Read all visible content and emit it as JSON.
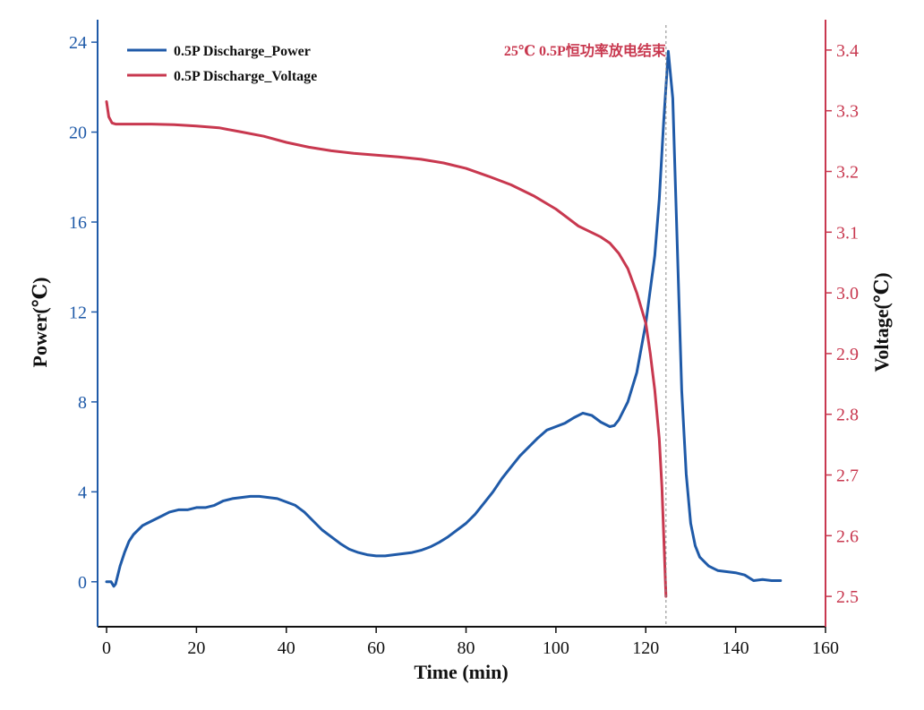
{
  "chart_data": {
    "type": "line",
    "title": "",
    "xlabel": "Time (min)",
    "ylabel_left": "Power(℃)",
    "ylabel_right": "Voltage(℃)",
    "xlim": [
      -2,
      160
    ],
    "ylim_left": [
      -2,
      25
    ],
    "ylim_right": [
      2.45,
      3.45
    ],
    "x_ticks": [
      0,
      20,
      40,
      60,
      80,
      100,
      120,
      140,
      160
    ],
    "y_left_ticks": [
      0,
      4,
      8,
      12,
      16,
      20,
      24
    ],
    "y_right_ticks": [
      "2.5",
      "2.6",
      "2.7",
      "2.8",
      "2.9",
      "3.0",
      "3.1",
      "3.2",
      "3.3",
      "3.4"
    ],
    "grid": false,
    "legend_position": "top-left",
    "annotation": {
      "text": "25℃ 0.5P恒功率放电结束",
      "x": 124.5,
      "color": "#c8384f"
    },
    "colors": {
      "left_axis": "#1f5aa8",
      "right_axis": "#c8384f",
      "axis_text": "#111111"
    },
    "series": [
      {
        "name": "0.5P Discharge_Power",
        "axis": "left",
        "color": "#1f5aa8",
        "x": [
          0,
          1,
          1.6,
          2,
          3,
          4,
          5,
          6,
          8,
          10,
          12,
          14,
          16,
          18,
          20,
          22,
          24,
          26,
          28,
          30,
          32,
          34,
          36,
          38,
          40,
          42,
          44,
          46,
          48,
          50,
          52,
          54,
          56,
          58,
          60,
          62,
          64,
          66,
          68,
          70,
          72,
          74,
          76,
          78,
          80,
          82,
          84,
          86,
          88,
          90,
          92,
          94,
          96,
          98,
          100,
          102,
          104,
          106,
          108,
          110,
          112,
          113,
          114,
          116,
          118,
          120,
          122,
          123,
          124,
          125,
          126,
          127,
          128,
          129,
          130,
          131,
          132,
          134,
          136,
          138,
          140,
          142,
          144,
          146,
          148,
          150
        ],
        "values": [
          0,
          0,
          -0.2,
          -0.1,
          0.7,
          1.3,
          1.8,
          2.1,
          2.5,
          2.7,
          2.9,
          3.1,
          3.2,
          3.2,
          3.3,
          3.3,
          3.4,
          3.6,
          3.7,
          3.75,
          3.8,
          3.8,
          3.75,
          3.7,
          3.55,
          3.4,
          3.1,
          2.7,
          2.3,
          2.0,
          1.7,
          1.45,
          1.3,
          1.2,
          1.15,
          1.15,
          1.2,
          1.25,
          1.3,
          1.4,
          1.55,
          1.75,
          2.0,
          2.3,
          2.6,
          3.0,
          3.5,
          4.0,
          4.6,
          5.1,
          5.6,
          6.0,
          6.4,
          6.75,
          6.9,
          7.05,
          7.3,
          7.5,
          7.4,
          7.1,
          6.9,
          6.95,
          7.2,
          8.0,
          9.3,
          11.5,
          14.5,
          17.0,
          20.5,
          23.6,
          21.5,
          15.0,
          8.5,
          4.8,
          2.6,
          1.6,
          1.1,
          0.7,
          0.5,
          0.45,
          0.4,
          0.3,
          0.05,
          0.1,
          0.05,
          0.05
        ]
      },
      {
        "name": "0.5P Discharge_Voltage",
        "axis": "right",
        "color": "#c8384f",
        "x": [
          0,
          0.5,
          1.2,
          2,
          5,
          10,
          15,
          20,
          25,
          30,
          35,
          40,
          45,
          50,
          55,
          60,
          65,
          70,
          75,
          80,
          85,
          90,
          95,
          100,
          105,
          110,
          112,
          114,
          116,
          118,
          120,
          121,
          122,
          123,
          123.6,
          124,
          124.5
        ],
        "values": [
          3.315,
          3.29,
          3.28,
          3.278,
          3.278,
          3.278,
          3.277,
          3.275,
          3.272,
          3.265,
          3.258,
          3.248,
          3.24,
          3.234,
          3.23,
          3.227,
          3.224,
          3.22,
          3.214,
          3.205,
          3.192,
          3.178,
          3.16,
          3.138,
          3.11,
          3.092,
          3.082,
          3.065,
          3.04,
          3.0,
          2.95,
          2.9,
          2.84,
          2.76,
          2.68,
          2.6,
          2.5
        ]
      }
    ]
  }
}
